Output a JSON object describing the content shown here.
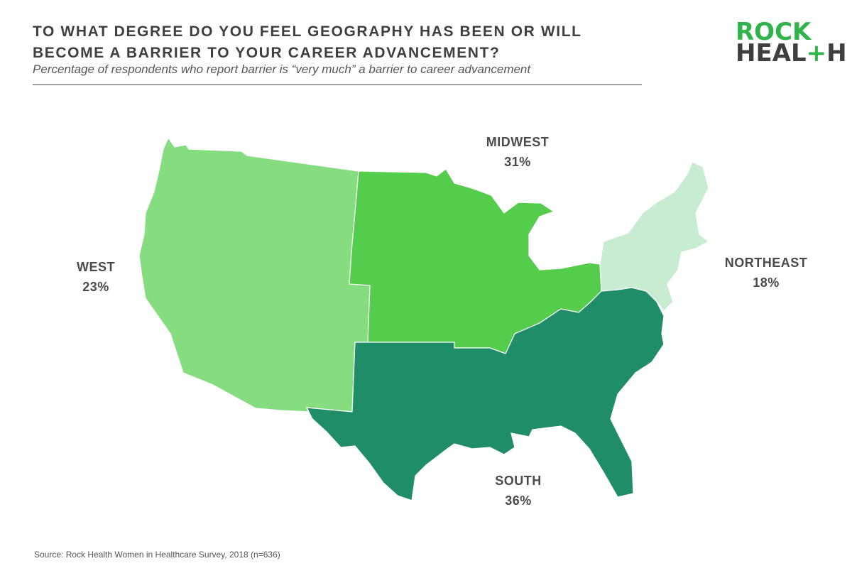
{
  "header": {
    "title": "TO WHAT DEGREE DO YOU FEEL GEOGRAPHY HAS BEEN OR WILL BECOME A BARRIER TO YOUR CAREER ADVANCEMENT?",
    "subtitle": "Percentage of respondents who report barrier is “very much” a barrier to career advancement"
  },
  "logo": {
    "line1": "ROCK",
    "line2_pre": "HEAL",
    "line2_plus": "+",
    "line2_post": "H"
  },
  "regions": [
    {
      "id": "west",
      "name": "WEST",
      "value": "23%",
      "color": "#86dd7f"
    },
    {
      "id": "midwest",
      "name": "MIDWEST",
      "value": "31%",
      "color": "#55cd4c"
    },
    {
      "id": "northeast",
      "name": "NORTHEAST",
      "value": "18%",
      "color": "#c7ecd1"
    },
    {
      "id": "south",
      "name": "SOUTH",
      "value": "36%",
      "color": "#208d69"
    }
  ],
  "footer": {
    "source": "Source: Rock Health Women in Healthcare Survey, 2018 (n=636)"
  }
}
